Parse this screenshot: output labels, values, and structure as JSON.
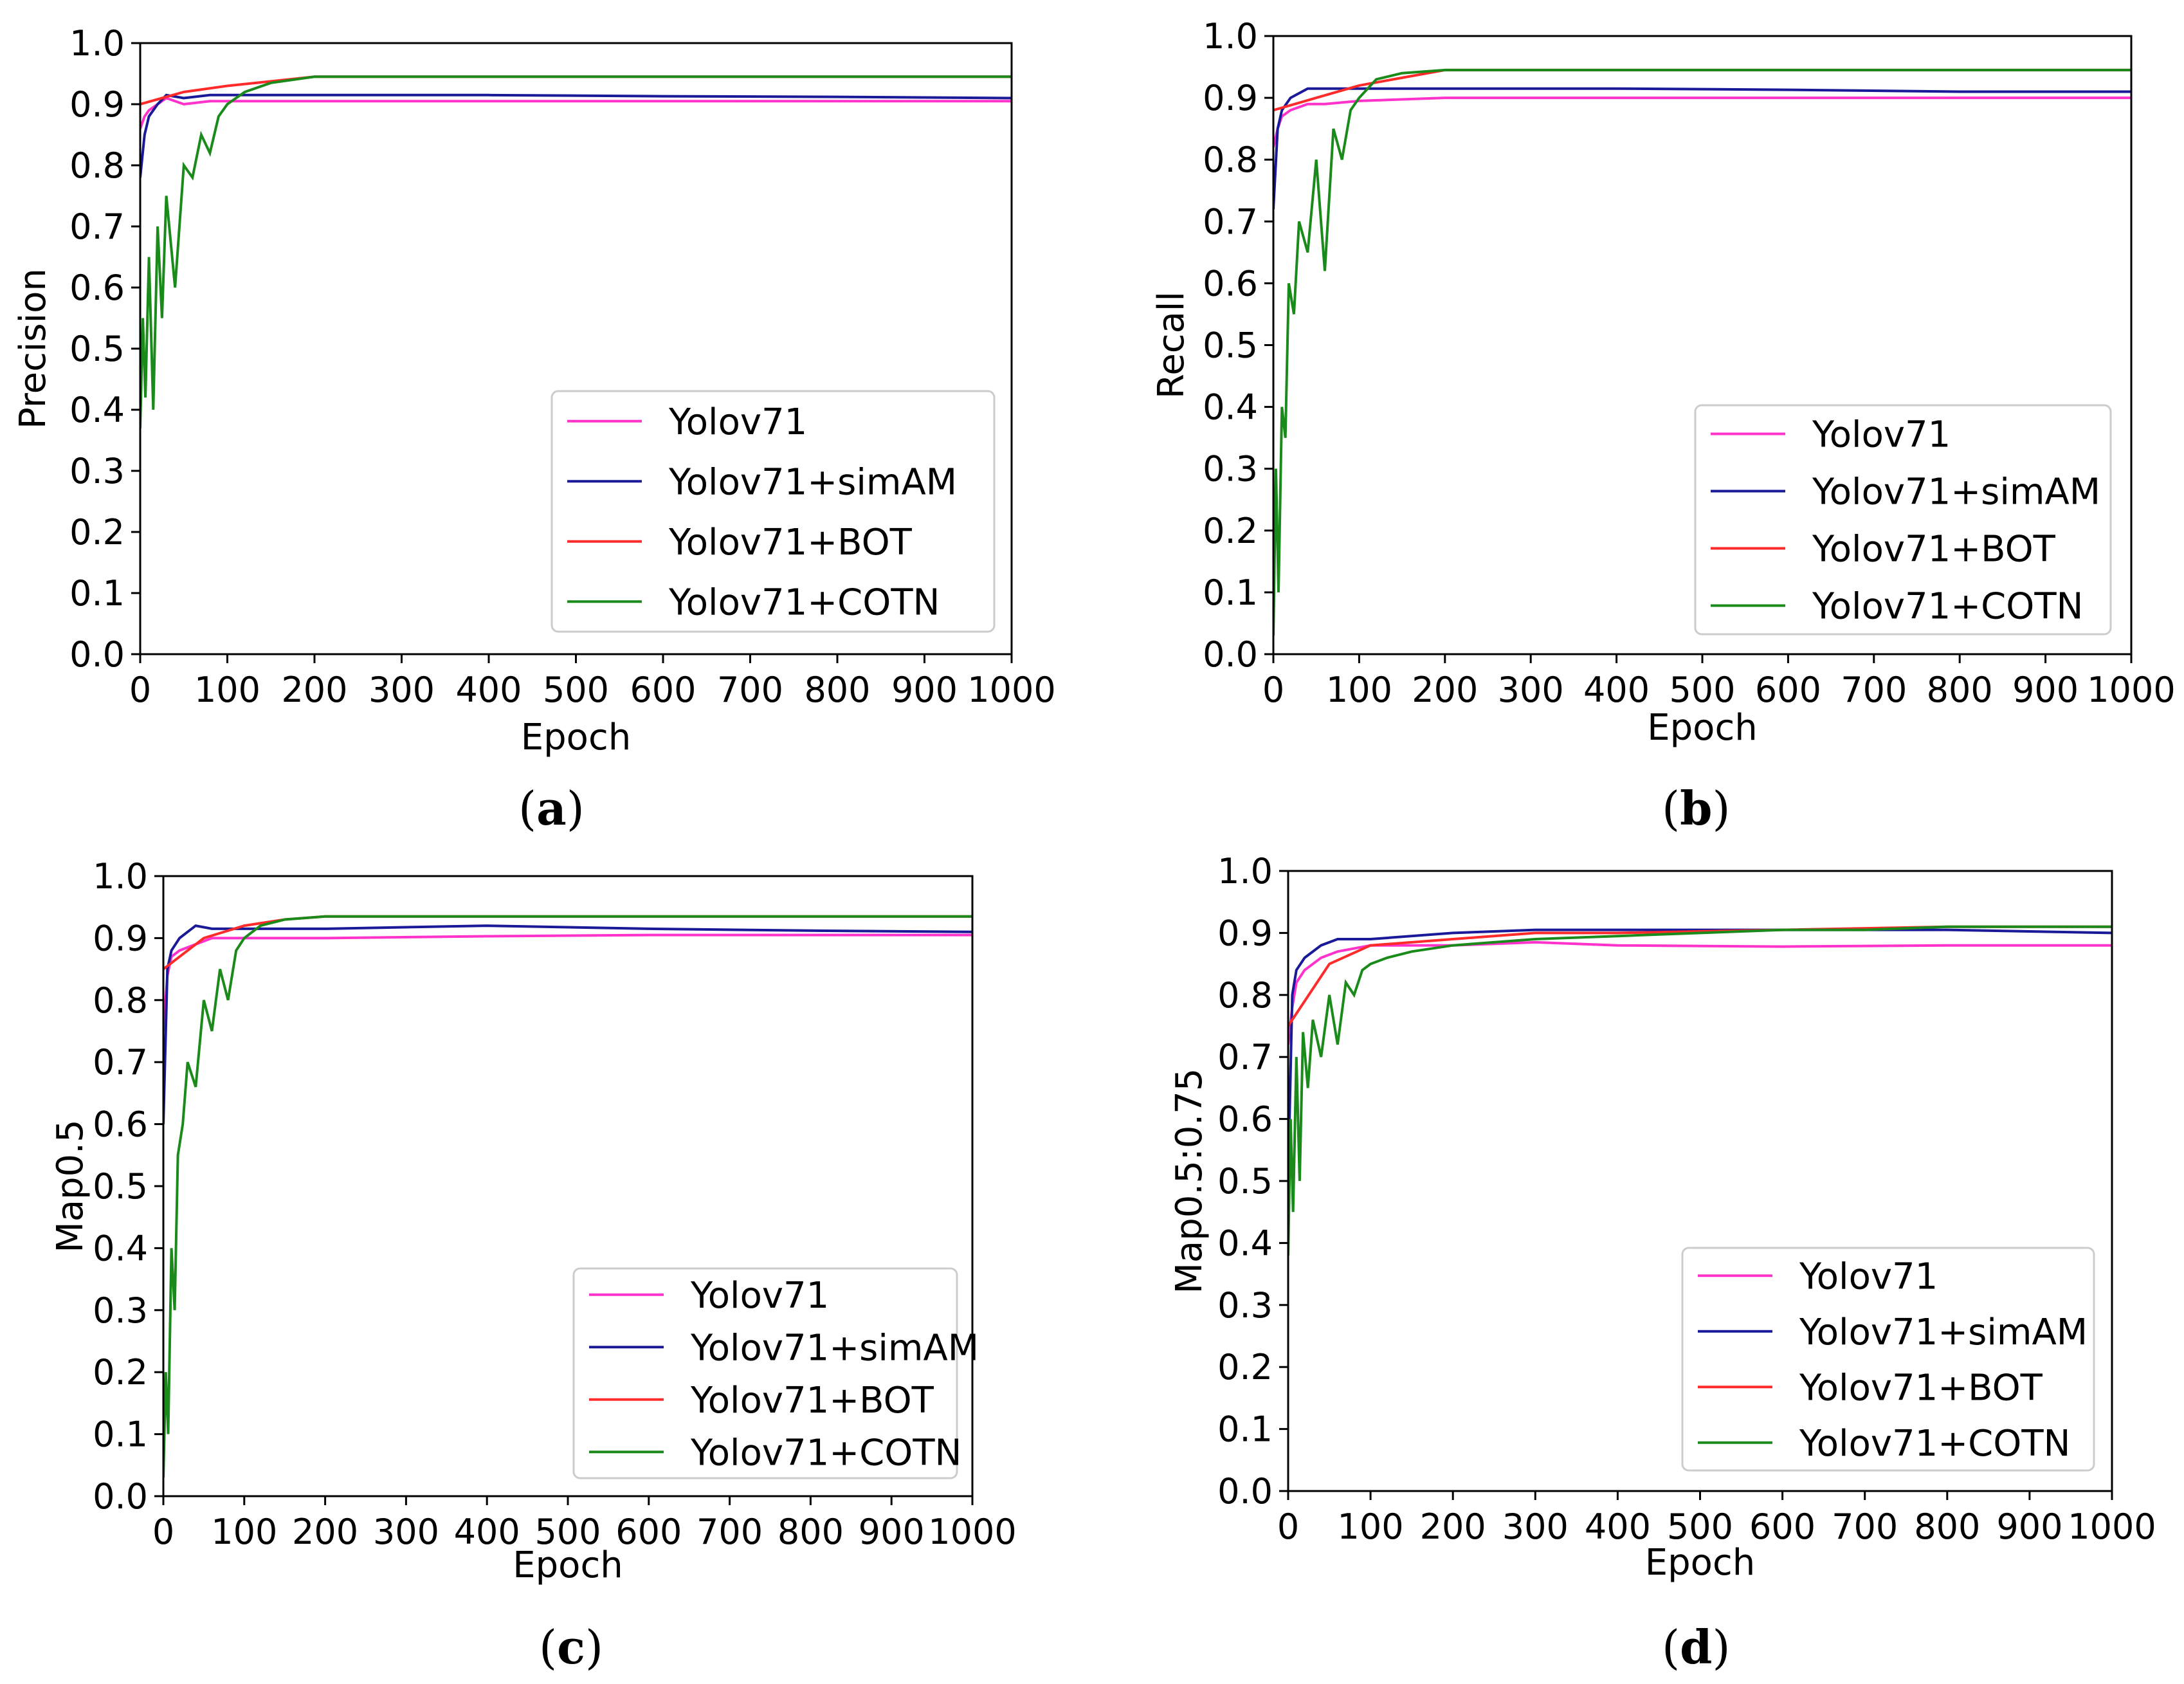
{
  "colors": {
    "Yolov71": "#ff33cc",
    "Yolov71+simAM": "#1a1a99",
    "Yolov71+BOT": "#ff2a2a",
    "Yolov71+COTN": "#1a8a1a"
  },
  "chart_data": [
    {
      "id": "a",
      "type": "line",
      "panel_label": "a",
      "xlabel": "Epoch",
      "ylabel": "Precision",
      "xlim": [
        0,
        1000
      ],
      "ylim": [
        0.0,
        1.0
      ],
      "xticks": [
        0,
        100,
        200,
        300,
        400,
        500,
        600,
        700,
        800,
        900,
        1000
      ],
      "yticks": [
        0.0,
        0.1,
        0.2,
        0.3,
        0.4,
        0.5,
        0.6,
        0.7,
        0.8,
        0.9,
        1.0
      ],
      "legend_position": "lower-right",
      "series": [
        {
          "name": "Yolov71",
          "x": [
            0,
            5,
            10,
            20,
            30,
            50,
            80,
            120,
            200,
            400,
            600,
            800,
            1000
          ],
          "values": [
            0.86,
            0.88,
            0.89,
            0.9,
            0.91,
            0.9,
            0.905,
            0.905,
            0.905,
            0.905,
            0.905,
            0.905,
            0.905
          ]
        },
        {
          "name": "Yolov71+simAM",
          "x": [
            0,
            5,
            10,
            20,
            30,
            50,
            80,
            120,
            200,
            400,
            600,
            800,
            1000
          ],
          "values": [
            0.78,
            0.85,
            0.88,
            0.9,
            0.915,
            0.91,
            0.915,
            0.915,
            0.915,
            0.915,
            0.913,
            0.912,
            0.91
          ]
        },
        {
          "name": "Yolov71+BOT",
          "x": [
            0,
            50,
            100,
            200,
            400,
            600,
            800,
            1000
          ],
          "values": [
            0.9,
            0.92,
            0.93,
            0.945,
            0.945,
            0.945,
            0.945,
            0.945
          ]
        },
        {
          "name": "Yolov71+COTN",
          "x": [
            0,
            3,
            6,
            10,
            15,
            20,
            25,
            30,
            40,
            50,
            60,
            70,
            80,
            90,
            100,
            120,
            150,
            200,
            300,
            400,
            500,
            600,
            700,
            800,
            900,
            1000
          ],
          "values": [
            0.37,
            0.55,
            0.42,
            0.65,
            0.4,
            0.7,
            0.55,
            0.75,
            0.6,
            0.8,
            0.78,
            0.85,
            0.82,
            0.88,
            0.9,
            0.92,
            0.935,
            0.945,
            0.945,
            0.945,
            0.945,
            0.945,
            0.945,
            0.945,
            0.945,
            0.945
          ]
        }
      ]
    },
    {
      "id": "b",
      "type": "line",
      "panel_label": "b",
      "xlabel": "Epoch",
      "ylabel": "Recall",
      "xlim": [
        0,
        1000
      ],
      "ylim": [
        0.0,
        1.0
      ],
      "xticks": [
        0,
        100,
        200,
        300,
        400,
        500,
        600,
        700,
        800,
        900,
        1000
      ],
      "yticks": [
        0.0,
        0.1,
        0.2,
        0.3,
        0.4,
        0.5,
        0.6,
        0.7,
        0.8,
        0.9,
        1.0
      ],
      "legend_position": "lower-right",
      "series": [
        {
          "name": "Yolov71",
          "x": [
            0,
            5,
            10,
            20,
            40,
            60,
            100,
            200,
            400,
            600,
            800,
            1000
          ],
          "values": [
            0.82,
            0.85,
            0.87,
            0.88,
            0.89,
            0.89,
            0.895,
            0.9,
            0.9,
            0.9,
            0.9,
            0.9
          ]
        },
        {
          "name": "Yolov71+simAM",
          "x": [
            0,
            5,
            10,
            20,
            40,
            60,
            100,
            200,
            400,
            600,
            800,
            1000
          ],
          "values": [
            0.72,
            0.85,
            0.88,
            0.9,
            0.915,
            0.915,
            0.915,
            0.915,
            0.915,
            0.913,
            0.91,
            0.91
          ]
        },
        {
          "name": "Yolov71+BOT",
          "x": [
            0,
            50,
            100,
            200,
            400,
            600,
            800,
            1000
          ],
          "values": [
            0.88,
            0.9,
            0.92,
            0.945,
            0.945,
            0.945,
            0.945,
            0.945
          ]
        },
        {
          "name": "Yolov71+COTN",
          "x": [
            0,
            3,
            6,
            10,
            14,
            18,
            24,
            30,
            40,
            50,
            60,
            70,
            80,
            90,
            100,
            120,
            150,
            200,
            300,
            400,
            500,
            600,
            700,
            800,
            900,
            1000
          ],
          "values": [
            0.03,
            0.3,
            0.1,
            0.4,
            0.35,
            0.6,
            0.55,
            0.7,
            0.65,
            0.8,
            0.62,
            0.85,
            0.8,
            0.88,
            0.9,
            0.93,
            0.94,
            0.945,
            0.945,
            0.945,
            0.945,
            0.945,
            0.945,
            0.945,
            0.945,
            0.945
          ]
        }
      ]
    },
    {
      "id": "c",
      "type": "line",
      "panel_label": "c",
      "xlabel": "Epoch",
      "ylabel": "Map0.5",
      "xlim": [
        0,
        1000
      ],
      "ylim": [
        0.0,
        1.0
      ],
      "xticks": [
        0,
        100,
        200,
        300,
        400,
        500,
        600,
        700,
        800,
        900,
        1000
      ],
      "yticks": [
        0.0,
        0.1,
        0.2,
        0.3,
        0.4,
        0.5,
        0.6,
        0.7,
        0.8,
        0.9,
        1.0
      ],
      "legend_position": "lower-right",
      "series": [
        {
          "name": "Yolov71",
          "x": [
            0,
            5,
            10,
            20,
            40,
            60,
            100,
            200,
            400,
            600,
            800,
            1000
          ],
          "values": [
            0.75,
            0.84,
            0.87,
            0.88,
            0.89,
            0.9,
            0.9,
            0.9,
            0.903,
            0.905,
            0.905,
            0.905
          ]
        },
        {
          "name": "Yolov71+simAM",
          "x": [
            0,
            5,
            10,
            20,
            40,
            60,
            100,
            200,
            400,
            600,
            800,
            1000
          ],
          "values": [
            0.6,
            0.85,
            0.88,
            0.9,
            0.92,
            0.915,
            0.915,
            0.915,
            0.92,
            0.915,
            0.912,
            0.91
          ]
        },
        {
          "name": "Yolov71+BOT",
          "x": [
            0,
            50,
            100,
            150,
            200,
            400,
            600,
            800,
            1000
          ],
          "values": [
            0.85,
            0.9,
            0.92,
            0.93,
            0.935,
            0.935,
            0.935,
            0.935,
            0.935
          ]
        },
        {
          "name": "Yolov71+COTN",
          "x": [
            0,
            3,
            6,
            10,
            14,
            18,
            24,
            30,
            40,
            50,
            60,
            70,
            80,
            90,
            100,
            120,
            150,
            200,
            300,
            400,
            500,
            600,
            700,
            800,
            900,
            1000
          ],
          "values": [
            0.03,
            0.2,
            0.1,
            0.4,
            0.3,
            0.55,
            0.6,
            0.7,
            0.66,
            0.8,
            0.75,
            0.85,
            0.8,
            0.88,
            0.9,
            0.92,
            0.93,
            0.935,
            0.935,
            0.935,
            0.935,
            0.935,
            0.935,
            0.935,
            0.935,
            0.935
          ]
        }
      ]
    },
    {
      "id": "d",
      "type": "line",
      "panel_label": "d",
      "xlabel": "Epoch",
      "ylabel": "Map0.5:0.75",
      "xlim": [
        0,
        1000
      ],
      "ylim": [
        0.0,
        1.0
      ],
      "xticks": [
        0,
        100,
        200,
        300,
        400,
        500,
        600,
        700,
        800,
        900,
        1000
      ],
      "yticks": [
        0.0,
        0.1,
        0.2,
        0.3,
        0.4,
        0.5,
        0.6,
        0.7,
        0.8,
        0.9,
        1.0
      ],
      "legend_position": "lower-right",
      "series": [
        {
          "name": "Yolov71",
          "x": [
            0,
            5,
            10,
            20,
            40,
            60,
            100,
            200,
            300,
            400,
            600,
            800,
            1000
          ],
          "values": [
            0.72,
            0.78,
            0.82,
            0.84,
            0.86,
            0.87,
            0.88,
            0.88,
            0.885,
            0.88,
            0.878,
            0.88,
            0.88
          ]
        },
        {
          "name": "Yolov71+simAM",
          "x": [
            0,
            5,
            10,
            20,
            40,
            60,
            100,
            200,
            300,
            400,
            600,
            800,
            1000
          ],
          "values": [
            0.5,
            0.8,
            0.84,
            0.86,
            0.88,
            0.89,
            0.89,
            0.9,
            0.905,
            0.905,
            0.905,
            0.905,
            0.9
          ]
        },
        {
          "name": "Yolov71+BOT",
          "x": [
            0,
            50,
            100,
            200,
            300,
            400,
            600,
            800,
            1000
          ],
          "values": [
            0.75,
            0.85,
            0.88,
            0.89,
            0.9,
            0.9,
            0.905,
            0.91,
            0.91
          ]
        },
        {
          "name": "Yolov71+COTN",
          "x": [
            0,
            3,
            6,
            10,
            14,
            18,
            24,
            30,
            40,
            50,
            60,
            70,
            80,
            90,
            100,
            120,
            150,
            200,
            300,
            400,
            500,
            600,
            700,
            800,
            900,
            1000
          ],
          "values": [
            0.38,
            0.6,
            0.45,
            0.7,
            0.5,
            0.74,
            0.65,
            0.76,
            0.7,
            0.8,
            0.72,
            0.82,
            0.8,
            0.84,
            0.85,
            0.86,
            0.87,
            0.88,
            0.89,
            0.895,
            0.9,
            0.905,
            0.905,
            0.91,
            0.91,
            0.91
          ]
        }
      ]
    }
  ]
}
